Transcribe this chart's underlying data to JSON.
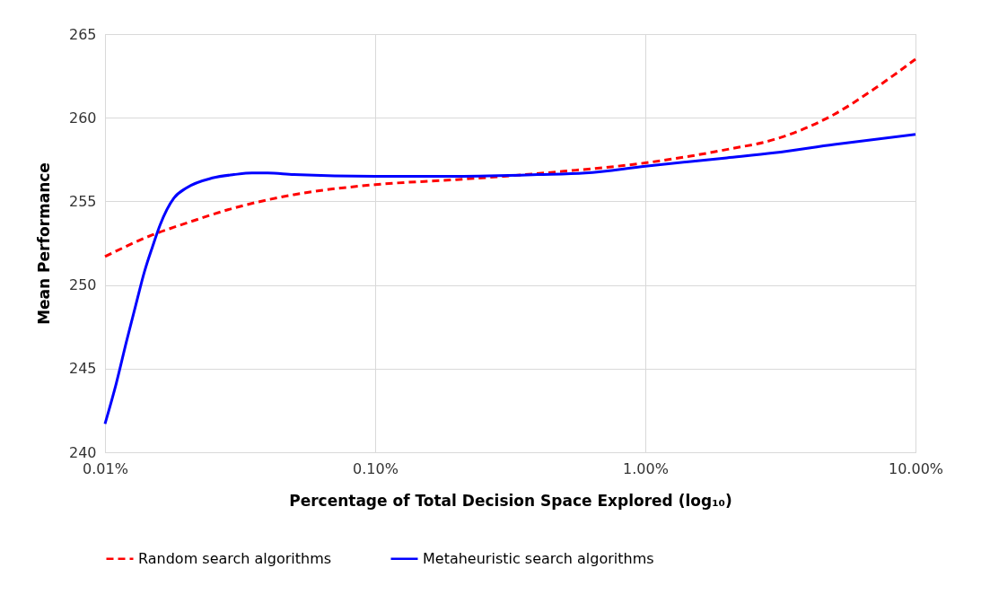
{
  "chart_data": {
    "type": "line",
    "xlabel": "Percentage of Total Decision Space Explored (log₁₀)",
    "ylabel": "Mean Performance",
    "log": "x",
    "xlim": [
      0.01,
      10
    ],
    "xticks": [
      {
        "value": 0.01,
        "label": "0.01%"
      },
      {
        "value": 0.1,
        "label": "0.10%"
      },
      {
        "value": 1,
        "label": "1.00%"
      },
      {
        "value": 10,
        "label": "10.00%"
      }
    ],
    "ylim": [
      240,
      265
    ],
    "yticks": [
      240,
      245,
      250,
      255,
      260,
      265
    ],
    "grid": true,
    "legend": "bottom",
    "series": [
      {
        "name": "Random search algorithms",
        "color": "#ff0000",
        "line_style": "dashed",
        "x": [
          0.01,
          0.015,
          0.02,
          0.03,
          0.05,
          0.1,
          0.2,
          0.3,
          0.5,
          1,
          2,
          3,
          5,
          7,
          10
        ],
        "values": [
          251.7,
          253.0,
          253.7,
          254.6,
          255.4,
          256.0,
          256.3,
          256.5,
          256.8,
          257.3,
          258.1,
          258.7,
          260.2,
          261.7,
          263.5
        ]
      },
      {
        "name": "Metaheuristic search algorithms",
        "color": "#0000ff",
        "line_style": "solid",
        "x": [
          0.01,
          0.011,
          0.012,
          0.013,
          0.014,
          0.015,
          0.016,
          0.018,
          0.02,
          0.025,
          0.03,
          0.035,
          0.04,
          0.05,
          0.1,
          0.2,
          0.4,
          0.6,
          1,
          2,
          3,
          5,
          10
        ],
        "values": [
          241.7,
          244.1,
          246.6,
          248.8,
          250.8,
          252.3,
          253.6,
          255.2,
          255.8,
          256.4,
          256.6,
          256.7,
          256.7,
          256.6,
          256.5,
          256.5,
          256.6,
          256.7,
          257.1,
          257.6,
          257.9,
          258.4,
          259.0
        ]
      }
    ]
  }
}
